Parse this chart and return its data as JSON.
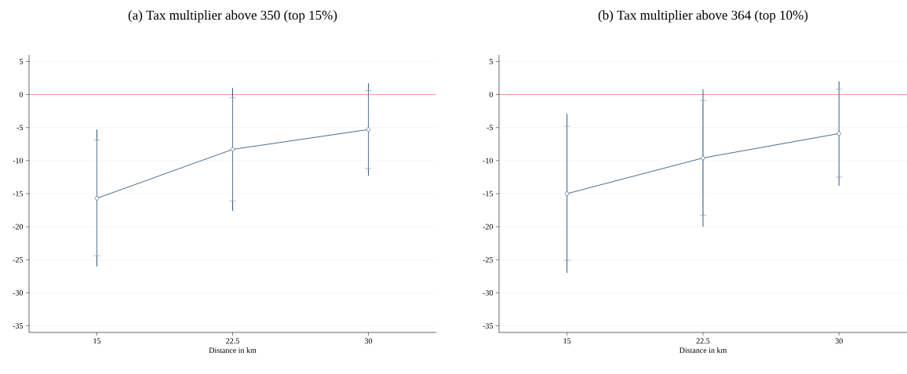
{
  "chart_data": [
    {
      "type": "line",
      "title": "(a) Tax multiplier above 350 (top 15%)",
      "xlabel": "Distance in km",
      "x": [
        15,
        22.5,
        30
      ],
      "xlim": [
        11.25,
        33.75
      ],
      "xticks": [
        15,
        22.5,
        30
      ],
      "ylim": [
        -36,
        6
      ],
      "yticks": [
        -35,
        -30,
        -25,
        -20,
        -15,
        -10,
        -5,
        0,
        5
      ],
      "grid": "y",
      "ref_lines": [
        {
          "axis": "y",
          "value": 0,
          "color": "#f0524f"
        }
      ],
      "series": [
        {
          "color": "#1a476f",
          "marker": "circle",
          "values": [
            -15.7,
            -8.3,
            -5.3
          ],
          "errors": [
            [
              -26.0,
              -5.3
            ],
            [
              -17.6,
              1.0
            ],
            [
              -12.3,
              1.7
            ]
          ]
        },
        {
          "type": "scatter",
          "color": "#7f98b4",
          "marker": "none",
          "values": [
            -15.7,
            -8.3,
            -5.3
          ],
          "errors": [
            [
              -24.4,
              -6.9
            ],
            [
              -16.1,
              -0.5
            ],
            [
              -11.2,
              0.6
            ]
          ]
        }
      ]
    },
    {
      "type": "line",
      "title": "(b) Tax multiplier above 364 (top 10%)",
      "xlabel": "Distance in km",
      "x": [
        15,
        22.5,
        30
      ],
      "xlim": [
        11.25,
        33.75
      ],
      "xticks": [
        15,
        22.5,
        30
      ],
      "ylim": [
        -36,
        6
      ],
      "yticks": [
        -35,
        -30,
        -25,
        -20,
        -15,
        -10,
        -5,
        0,
        5
      ],
      "grid": "y",
      "ref_lines": [
        {
          "axis": "y",
          "value": 0,
          "color": "#f0524f"
        }
      ],
      "series": [
        {
          "color": "#1a476f",
          "marker": "circle",
          "values": [
            -15.0,
            -9.6,
            -5.9
          ],
          "errors": [
            [
              -27.0,
              -2.9
            ],
            [
              -20.0,
              0.8
            ],
            [
              -13.8,
              2.0
            ]
          ]
        },
        {
          "type": "scatter",
          "color": "#7f98b4",
          "marker": "none",
          "values": [
            -15.0,
            -9.6,
            -5.9
          ],
          "errors": [
            [
              -25.1,
              -4.8
            ],
            [
              -18.3,
              -0.9
            ],
            [
              -12.5,
              0.8
            ]
          ]
        }
      ]
    }
  ]
}
